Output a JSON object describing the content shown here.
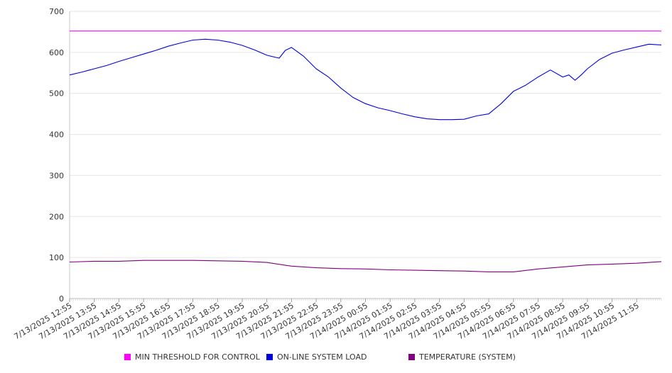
{
  "chart_data": {
    "type": "line",
    "title": "",
    "xlabel": "",
    "ylabel": "",
    "ylim": [
      0,
      700
    ],
    "y_ticks": [
      0,
      100,
      200,
      300,
      400,
      500,
      600,
      700
    ],
    "x_tick_labels": [
      "7/13/2025 12:55",
      "7/13/2025 13:55",
      "7/13/2025 14:55",
      "7/13/2025 15:55",
      "7/13/2025 16:55",
      "7/13/2025 17:55",
      "7/13/2025 18:55",
      "7/13/2025 19:55",
      "7/13/2025 20:55",
      "7/13/2025 21:55",
      "7/13/2025 22:55",
      "7/13/2025 23:55",
      "7/14/2025 00:55",
      "7/14/2025 01:55",
      "7/14/2025 02:55",
      "7/14/2025 03:55",
      "7/14/2025 04:55",
      "7/14/2025 05:55",
      "7/14/2025 06:55",
      "7/14/2025 07:55",
      "7/14/2025 08:55",
      "7/14/2025 09:55",
      "7/14/2025 10:55",
      "7/14/2025 11:55"
    ],
    "x_range": [
      "7/13/2025 12:55",
      "7/14/2025 12:55"
    ],
    "grid": "horizontal",
    "legend_position": "bottom",
    "series": [
      {
        "name": "MIN THRESHOLD FOR CONTROL",
        "color": "#ff00ff",
        "x": [
          "7/13/2025 12:55",
          "7/14/2025 12:55"
        ],
        "values": [
          652,
          652
        ]
      },
      {
        "name": "ON-LINE SYSTEM LOAD",
        "color": "#0000dd",
        "x": [
          "7/13/2025 12:55",
          "7/13/2025 13:25",
          "7/13/2025 13:55",
          "7/13/2025 14:25",
          "7/13/2025 14:55",
          "7/13/2025 15:25",
          "7/13/2025 15:55",
          "7/13/2025 16:25",
          "7/13/2025 16:55",
          "7/13/2025 17:25",
          "7/13/2025 17:55",
          "7/13/2025 18:25",
          "7/13/2025 18:55",
          "7/13/2025 19:25",
          "7/13/2025 19:55",
          "7/13/2025 20:25",
          "7/13/2025 20:55",
          "7/13/2025 21:25",
          "7/13/2025 21:40",
          "7/13/2025 21:55",
          "7/13/2025 22:25",
          "7/13/2025 22:55",
          "7/13/2025 23:25",
          "7/13/2025 23:55",
          "7/14/2025 00:25",
          "7/14/2025 00:55",
          "7/14/2025 01:25",
          "7/14/2025 01:55",
          "7/14/2025 02:25",
          "7/14/2025 02:55",
          "7/14/2025 03:25",
          "7/14/2025 03:55",
          "7/14/2025 04:25",
          "7/14/2025 04:55",
          "7/14/2025 05:25",
          "7/14/2025 05:55",
          "7/14/2025 06:25",
          "7/14/2025 06:55",
          "7/14/2025 07:25",
          "7/14/2025 07:55",
          "7/14/2025 08:25",
          "7/14/2025 08:55",
          "7/14/2025 09:10",
          "7/14/2025 09:25",
          "7/14/2025 09:40",
          "7/14/2025 09:55",
          "7/14/2025 10:25",
          "7/14/2025 10:55",
          "7/14/2025 11:25",
          "7/14/2025 11:55",
          "7/14/2025 12:25",
          "7/14/2025 12:55"
        ],
        "values": [
          545,
          552,
          560,
          568,
          578,
          587,
          596,
          605,
          615,
          623,
          630,
          632,
          630,
          625,
          617,
          606,
          593,
          586,
          605,
          612,
          590,
          560,
          540,
          513,
          490,
          475,
          465,
          458,
          450,
          443,
          438,
          436,
          436,
          437,
          445,
          450,
          475,
          505,
          520,
          540,
          557,
          540,
          545,
          532,
          545,
          560,
          583,
          598,
          606,
          613,
          620,
          618
        ]
      },
      {
        "name": "TEMPERATURE (SYSTEM)",
        "color": "#800080",
        "x": [
          "7/13/2025 12:55",
          "7/13/2025 13:55",
          "7/13/2025 14:55",
          "7/13/2025 15:55",
          "7/13/2025 16:55",
          "7/13/2025 17:55",
          "7/13/2025 18:55",
          "7/13/2025 19:55",
          "7/13/2025 20:55",
          "7/13/2025 21:55",
          "7/13/2025 22:55",
          "7/13/2025 23:55",
          "7/14/2025 00:55",
          "7/14/2025 01:55",
          "7/14/2025 02:55",
          "7/14/2025 03:55",
          "7/14/2025 04:55",
          "7/14/2025 05:55",
          "7/14/2025 06:55",
          "7/14/2025 07:55",
          "7/14/2025 08:55",
          "7/14/2025 09:55",
          "7/14/2025 10:55",
          "7/14/2025 11:55",
          "7/14/2025 12:55"
        ],
        "values": [
          89,
          91,
          91,
          93,
          93,
          93,
          92,
          91,
          88,
          79,
          75,
          73,
          72,
          70,
          69,
          68,
          67,
          65,
          65,
          72,
          77,
          82,
          84,
          86,
          90
        ]
      }
    ]
  }
}
